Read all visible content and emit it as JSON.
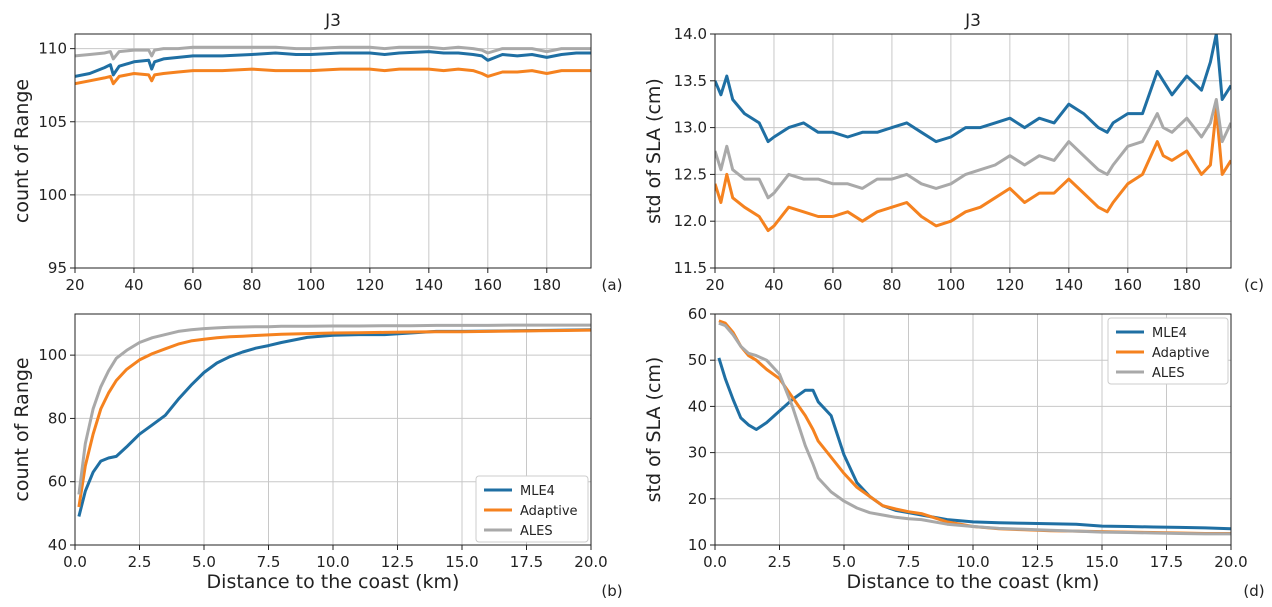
{
  "chart_data": [
    {
      "type": "line",
      "panel": "(a)",
      "title": "J3",
      "xlabel": "",
      "ylabel": "count of Range",
      "xlim": [
        20,
        195
      ],
      "ylim": [
        95,
        111
      ],
      "xticks": [
        20,
        40,
        60,
        80,
        100,
        120,
        140,
        160,
        180
      ],
      "yticks": [
        95,
        100,
        105,
        110
      ],
      "grid": true,
      "legend": "none",
      "x": [
        20,
        25,
        30,
        32,
        33,
        35,
        40,
        45,
        46,
        47,
        50,
        55,
        60,
        70,
        80,
        88,
        95,
        100,
        110,
        120,
        125,
        130,
        140,
        145,
        150,
        155,
        158,
        160,
        165,
        170,
        175,
        180,
        185,
        190,
        195
      ],
      "series": [
        {
          "name": "MLE4",
          "color": "#1f6fa3",
          "values": [
            108.1,
            108.3,
            108.7,
            108.9,
            108.2,
            108.8,
            109.1,
            109.2,
            108.6,
            109.1,
            109.3,
            109.4,
            109.5,
            109.5,
            109.6,
            109.7,
            109.6,
            109.6,
            109.7,
            109.7,
            109.6,
            109.7,
            109.8,
            109.7,
            109.7,
            109.6,
            109.5,
            109.2,
            109.6,
            109.5,
            109.6,
            109.4,
            109.6,
            109.7,
            109.7
          ]
        },
        {
          "name": "Adaptive",
          "color": "#f5821f",
          "values": [
            107.6,
            107.8,
            108.0,
            108.1,
            107.6,
            108.1,
            108.3,
            108.2,
            107.8,
            108.2,
            108.3,
            108.4,
            108.5,
            108.5,
            108.6,
            108.5,
            108.5,
            108.5,
            108.6,
            108.6,
            108.5,
            108.6,
            108.6,
            108.5,
            108.6,
            108.5,
            108.3,
            108.1,
            108.4,
            108.4,
            108.5,
            108.3,
            108.5,
            108.5,
            108.5
          ]
        },
        {
          "name": "ALES",
          "color": "#a9a9a9",
          "values": [
            109.5,
            109.6,
            109.7,
            109.8,
            109.3,
            109.8,
            109.9,
            109.9,
            109.5,
            109.9,
            110.0,
            110.0,
            110.1,
            110.1,
            110.1,
            110.1,
            110.0,
            110.0,
            110.1,
            110.1,
            110.0,
            110.1,
            110.1,
            110.0,
            110.1,
            110.0,
            109.9,
            109.7,
            110.0,
            110.0,
            110.0,
            109.8,
            110.0,
            110.0,
            110.0
          ]
        }
      ]
    },
    {
      "type": "line",
      "panel": "(b)",
      "title": "",
      "xlabel": "Distance to the coast (km)",
      "ylabel": "count of Range",
      "xlim": [
        0,
        20
      ],
      "ylim": [
        40,
        113
      ],
      "xticks": [
        0.0,
        2.5,
        5.0,
        7.5,
        10.0,
        12.5,
        15.0,
        17.5,
        20.0
      ],
      "xtick_labels": [
        "0.0",
        "2.5",
        "5.0",
        "7.5",
        "10.0",
        "12.5",
        "15.0",
        "17.5",
        "20.0"
      ],
      "yticks": [
        40,
        60,
        80,
        100
      ],
      "grid": true,
      "legend": "lower-right",
      "x": [
        0.15,
        0.4,
        0.7,
        1.0,
        1.3,
        1.6,
        2.0,
        2.5,
        3.0,
        3.5,
        4.0,
        4.5,
        5.0,
        5.5,
        6.0,
        6.5,
        7.0,
        7.5,
        8.0,
        9.0,
        10.0,
        11.0,
        12.0,
        13.0,
        14.0,
        15.0,
        16.0,
        17.0,
        18.0,
        19.0,
        20.0
      ],
      "series": [
        {
          "name": "MLE4",
          "color": "#1f6fa3",
          "values": [
            49,
            57,
            63,
            66.5,
            67.5,
            68,
            71,
            75,
            78,
            81,
            86,
            90.5,
            94.5,
            97.5,
            99.5,
            101,
            102.2,
            103,
            104,
            105.6,
            106.3,
            106.5,
            106.5,
            107,
            107.5,
            107.5,
            107.6,
            107.7,
            107.8,
            107.9,
            108
          ]
        },
        {
          "name": "Adaptive",
          "color": "#f5821f",
          "values": [
            52,
            65,
            75,
            83,
            88,
            92,
            95.5,
            98.5,
            100.5,
            102,
            103.5,
            104.5,
            105,
            105.5,
            105.8,
            106,
            106.2,
            106.4,
            106.6,
            106.8,
            107,
            107.1,
            107.2,
            107.3,
            107.4,
            107.4,
            107.5,
            107.6,
            107.7,
            107.8,
            107.9
          ]
        },
        {
          "name": "ALES",
          "color": "#a9a9a9",
          "values": [
            56,
            72,
            83,
            90,
            95,
            99,
            101.5,
            104,
            105.5,
            106.5,
            107.5,
            108,
            108.4,
            108.6,
            108.8,
            108.9,
            109,
            109,
            109.1,
            109.1,
            109.2,
            109.2,
            109.3,
            109.3,
            109.4,
            109.4,
            109.4,
            109.5,
            109.5,
            109.5,
            109.5
          ]
        }
      ]
    },
    {
      "type": "line",
      "panel": "(c)",
      "title": "J3",
      "xlabel": "",
      "ylabel": "std of SLA (cm)",
      "xlim": [
        20,
        195
      ],
      "ylim": [
        11.5,
        14.0
      ],
      "xticks": [
        20,
        40,
        60,
        80,
        100,
        120,
        140,
        160,
        180
      ],
      "yticks": [
        11.5,
        12.0,
        12.5,
        13.0,
        13.5,
        14.0
      ],
      "ytick_labels": [
        "11.5",
        "12.0",
        "12.5",
        "13.0",
        "13.5",
        "14.0"
      ],
      "grid": true,
      "legend": "none",
      "x": [
        20,
        22,
        24,
        26,
        30,
        35,
        38,
        40,
        45,
        50,
        55,
        60,
        65,
        70,
        75,
        80,
        85,
        90,
        95,
        100,
        105,
        110,
        115,
        120,
        125,
        130,
        135,
        140,
        145,
        150,
        153,
        155,
        160,
        165,
        170,
        172,
        175,
        180,
        185,
        188,
        190,
        192,
        195
      ],
      "series": [
        {
          "name": "MLE4",
          "color": "#1f6fa3",
          "values": [
            13.5,
            13.35,
            13.55,
            13.3,
            13.15,
            13.05,
            12.85,
            12.9,
            13.0,
            13.05,
            12.95,
            12.95,
            12.9,
            12.95,
            12.95,
            13.0,
            13.05,
            12.95,
            12.85,
            12.9,
            13.0,
            13.0,
            13.05,
            13.1,
            13.0,
            13.1,
            13.05,
            13.25,
            13.15,
            13.0,
            12.95,
            13.05,
            13.15,
            13.15,
            13.6,
            13.5,
            13.35,
            13.55,
            13.4,
            13.7,
            14.0,
            13.3,
            13.45
          ]
        },
        {
          "name": "Adaptive",
          "color": "#f5821f",
          "values": [
            12.4,
            12.2,
            12.5,
            12.25,
            12.15,
            12.05,
            11.9,
            11.95,
            12.15,
            12.1,
            12.05,
            12.05,
            12.1,
            12.0,
            12.1,
            12.15,
            12.2,
            12.05,
            11.95,
            12.0,
            12.1,
            12.15,
            12.25,
            12.35,
            12.2,
            12.3,
            12.3,
            12.45,
            12.3,
            12.15,
            12.1,
            12.2,
            12.4,
            12.5,
            12.85,
            12.7,
            12.65,
            12.75,
            12.5,
            12.6,
            13.2,
            12.5,
            12.65
          ]
        },
        {
          "name": "ALES",
          "color": "#a9a9a9",
          "values": [
            12.75,
            12.55,
            12.8,
            12.55,
            12.45,
            12.45,
            12.25,
            12.3,
            12.5,
            12.45,
            12.45,
            12.4,
            12.4,
            12.35,
            12.45,
            12.45,
            12.5,
            12.4,
            12.35,
            12.4,
            12.5,
            12.55,
            12.6,
            12.7,
            12.6,
            12.7,
            12.65,
            12.85,
            12.7,
            12.55,
            12.5,
            12.6,
            12.8,
            12.85,
            13.15,
            13.0,
            12.95,
            13.1,
            12.9,
            13.05,
            13.3,
            12.85,
            13.05
          ]
        }
      ]
    },
    {
      "type": "line",
      "panel": "(d)",
      "title": "",
      "xlabel": "Distance to the coast (km)",
      "ylabel": "std of SLA (cm)",
      "xlim": [
        0,
        20
      ],
      "ylim": [
        10,
        60
      ],
      "xticks": [
        0.0,
        2.5,
        5.0,
        7.5,
        10.0,
        12.5,
        15.0,
        17.5,
        20.0
      ],
      "xtick_labels": [
        "0.0",
        "2.5",
        "5.0",
        "7.5",
        "10.0",
        "12.5",
        "15.0",
        "17.5",
        "20.0"
      ],
      "yticks": [
        10,
        20,
        30,
        40,
        50,
        60
      ],
      "grid": true,
      "legend": "upper-right",
      "x": [
        0.15,
        0.4,
        0.7,
        1.0,
        1.3,
        1.6,
        2.0,
        2.5,
        3.0,
        3.5,
        3.8,
        4.0,
        4.5,
        5.0,
        5.5,
        6.0,
        6.5,
        7.0,
        7.5,
        8.0,
        9.0,
        10.0,
        11.0,
        12.0,
        13.0,
        14.0,
        15.0,
        16.0,
        17.0,
        18.0,
        19.0,
        20.0
      ],
      "series": [
        {
          "name": "MLE4",
          "color": "#1f6fa3",
          "values": [
            50.5,
            46,
            41.5,
            37.5,
            36,
            35,
            36.5,
            39,
            41.5,
            43.5,
            43.5,
            41,
            38,
            29.5,
            23.5,
            20.5,
            18.5,
            17.5,
            17,
            16.5,
            15.5,
            15,
            14.8,
            14.7,
            14.6,
            14.5,
            14.1,
            14.0,
            13.9,
            13.8,
            13.7,
            13.5
          ]
        },
        {
          "name": "Adaptive",
          "color": "#f5821f",
          "values": [
            58.5,
            58,
            56,
            53,
            51,
            50,
            48,
            46,
            42,
            38,
            35,
            32.5,
            29,
            25.5,
            22.5,
            20.5,
            18.5,
            17.8,
            17.2,
            16.8,
            15.0,
            14.0,
            13.5,
            13.3,
            13.1,
            13.0,
            12.9,
            12.8,
            12.7,
            12.6,
            12.5,
            12.5
          ]
        },
        {
          "name": "ALES",
          "color": "#a9a9a9",
          "values": [
            58,
            57.5,
            55.5,
            53,
            51.5,
            51,
            50,
            47,
            40,
            31.5,
            27.5,
            24.5,
            21.5,
            19.5,
            18,
            17,
            16.5,
            16,
            15.7,
            15.5,
            14.5,
            14.0,
            13.6,
            13.4,
            13.2,
            13.0,
            12.8,
            12.7,
            12.6,
            12.5,
            12.4,
            12.4
          ]
        }
      ]
    }
  ]
}
